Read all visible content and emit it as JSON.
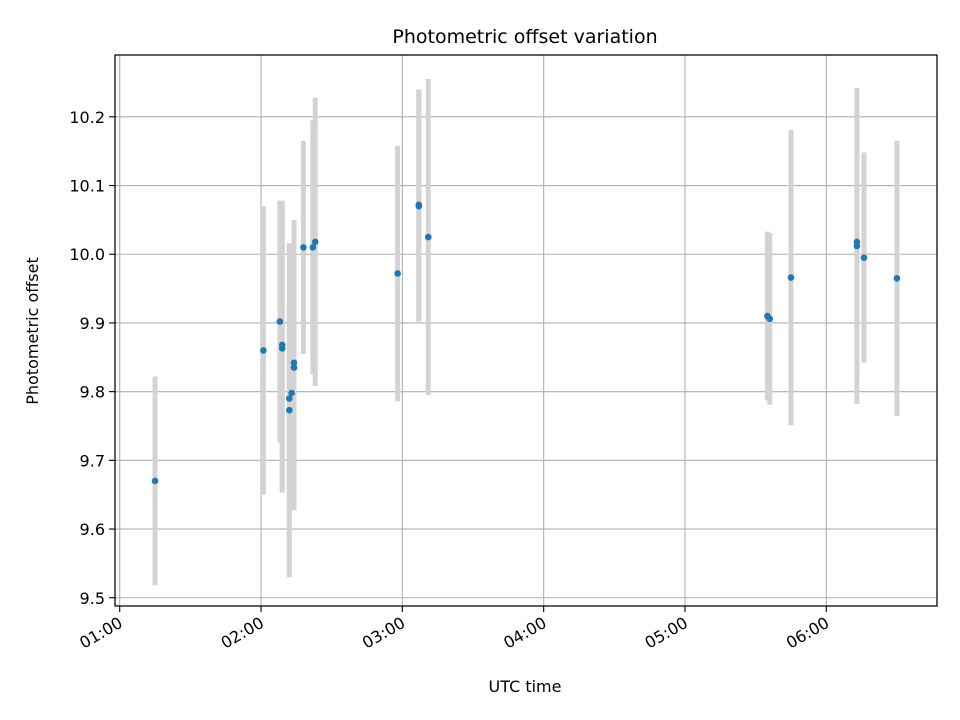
{
  "chart_data": {
    "type": "scatter",
    "title": "Photometric offset variation",
    "xlabel": "UTC time",
    "ylabel": "Photometric offset",
    "x_axis": {
      "ticks": [
        "01:00",
        "02:00",
        "03:00",
        "04:00",
        "05:00",
        "06:00"
      ],
      "range": [
        "00:58",
        "06:47"
      ]
    },
    "y_axis": {
      "ticks": [
        "9.5",
        "9.6",
        "9.7",
        "9.8",
        "9.9",
        "10.0",
        "10.1",
        "10.2"
      ],
      "range": [
        9.488,
        10.29
      ]
    },
    "grid": true,
    "colors": {
      "point": "#1f77b4",
      "errorbar": "#d3d3d3",
      "grid": "#b0b0b0"
    },
    "series": [
      {
        "points": [
          {
            "x": "01:15",
            "y": 9.67,
            "err": 0.152
          },
          {
            "x": "02:01",
            "y": 9.86,
            "err": 0.21
          },
          {
            "x": "02:08",
            "y": 9.902,
            "err": 0.176
          },
          {
            "x": "02:09",
            "y": 9.868,
            "err": 0.21
          },
          {
            "x": "02:09",
            "y": 9.863,
            "err": 0.21
          },
          {
            "x": "02:12",
            "y": 9.773,
            "err": 0.243
          },
          {
            "x": "02:12",
            "y": 9.79,
            "err": 0.135
          },
          {
            "x": "02:13",
            "y": 9.798,
            "err": 0.135
          },
          {
            "x": "02:14",
            "y": 9.842,
            "err": 0.208
          },
          {
            "x": "02:14",
            "y": 9.835,
            "err": 0.208
          },
          {
            "x": "02:18",
            "y": 10.01,
            "err": 0.155
          },
          {
            "x": "02:22",
            "y": 10.01,
            "err": 0.185
          },
          {
            "x": "02:23",
            "y": 10.018,
            "err": 0.21
          },
          {
            "x": "02:58",
            "y": 9.972,
            "err": 0.186
          },
          {
            "x": "03:07",
            "y": 10.072,
            "err": 0.168
          },
          {
            "x": "03:07",
            "y": 10.07,
            "err": 0.168
          },
          {
            "x": "03:11",
            "y": 10.025,
            "err": 0.23
          },
          {
            "x": "05:35",
            "y": 9.91,
            "err": 0.123
          },
          {
            "x": "05:36",
            "y": 9.906,
            "err": 0.125
          },
          {
            "x": "05:45",
            "y": 9.966,
            "err": 0.215
          },
          {
            "x": "06:13",
            "y": 10.012,
            "err": 0.23
          },
          {
            "x": "06:13",
            "y": 10.018,
            "err": 0.19
          },
          {
            "x": "06:16",
            "y": 9.995,
            "err": 0.153
          },
          {
            "x": "06:30",
            "y": 9.965,
            "err": 0.2
          }
        ]
      }
    ]
  }
}
